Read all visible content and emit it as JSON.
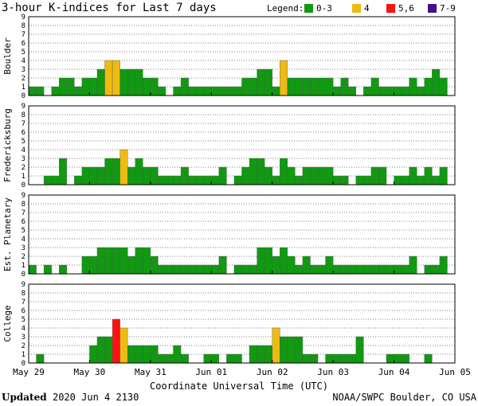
{
  "header": {
    "title": "3-hour K-indices for Last 7 days",
    "legend_label": "Legend:",
    "legend": [
      {
        "label": "0-3",
        "color": "#119911"
      },
      {
        "label": "4",
        "color": "#eebb11"
      },
      {
        "label": "5,6",
        "color": "#ff1111"
      },
      {
        "label": "7-9",
        "color": "#441188"
      }
    ]
  },
  "footer": {
    "updated_label": "Updated",
    "updated_value": "2020 Jun  4 2130",
    "credit": "NOAA/SWPC Boulder, CO USA"
  },
  "chart_data": {
    "type": "bar",
    "xlabel": "Coordinate Universal Time (UTC)",
    "x_ticks": [
      "May 29",
      "May 30",
      "May 31",
      "Jun 01",
      "Jun 02",
      "Jun 03",
      "Jun 04",
      "Jun 05"
    ],
    "ylim": [
      0,
      9
    ],
    "y_ticks": [
      0,
      1,
      2,
      3,
      4,
      5,
      6,
      7,
      8,
      9
    ],
    "bins_per_day": 8,
    "grid": true,
    "panels": [
      {
        "name": "Boulder",
        "values": [
          1,
          1,
          0,
          1,
          2,
          2,
          1,
          2,
          2,
          3,
          4,
          4,
          3,
          3,
          3,
          2,
          2,
          1,
          0,
          1,
          2,
          1,
          1,
          1,
          1,
          1,
          1,
          1,
          2,
          2,
          3,
          3,
          1,
          4,
          2,
          2,
          2,
          2,
          2,
          2,
          1,
          2,
          1,
          0,
          1,
          2,
          1,
          1,
          1,
          1,
          2,
          1,
          2,
          3,
          2,
          0
        ]
      },
      {
        "name": "Fredericksburg",
        "values": [
          0,
          0,
          1,
          1,
          3,
          0,
          1,
          2,
          2,
          2,
          3,
          3,
          4,
          2,
          3,
          2,
          2,
          1,
          1,
          1,
          2,
          1,
          1,
          1,
          1,
          2,
          0,
          1,
          2,
          3,
          3,
          2,
          1,
          3,
          2,
          1,
          2,
          2,
          2,
          2,
          1,
          1,
          0,
          1,
          1,
          2,
          2,
          0,
          1,
          1,
          2,
          1,
          2,
          1,
          2,
          0
        ]
      },
      {
        "name": "Est. Planetary",
        "values": [
          1,
          0,
          1,
          0,
          1,
          0,
          0,
          2,
          2,
          3,
          3,
          3,
          3,
          2,
          3,
          3,
          2,
          1,
          1,
          1,
          1,
          1,
          1,
          1,
          1,
          2,
          0,
          1,
          1,
          1,
          3,
          3,
          2,
          3,
          2,
          1,
          2,
          1,
          1,
          2,
          1,
          1,
          1,
          1,
          1,
          1,
          1,
          1,
          1,
          1,
          2,
          0,
          1,
          1,
          2,
          0
        ]
      },
      {
        "name": "College",
        "values": [
          0,
          1,
          0,
          0,
          0,
          0,
          0,
          0,
          2,
          3,
          3,
          5,
          4,
          2,
          2,
          2,
          2,
          1,
          1,
          2,
          1,
          0,
          0,
          1,
          1,
          0,
          1,
          1,
          0,
          2,
          2,
          2,
          4,
          3,
          3,
          3,
          1,
          1,
          0,
          1,
          1,
          1,
          1,
          3,
          0,
          0,
          0,
          1,
          1,
          1,
          0,
          0,
          1,
          0,
          0,
          0
        ]
      }
    ]
  }
}
